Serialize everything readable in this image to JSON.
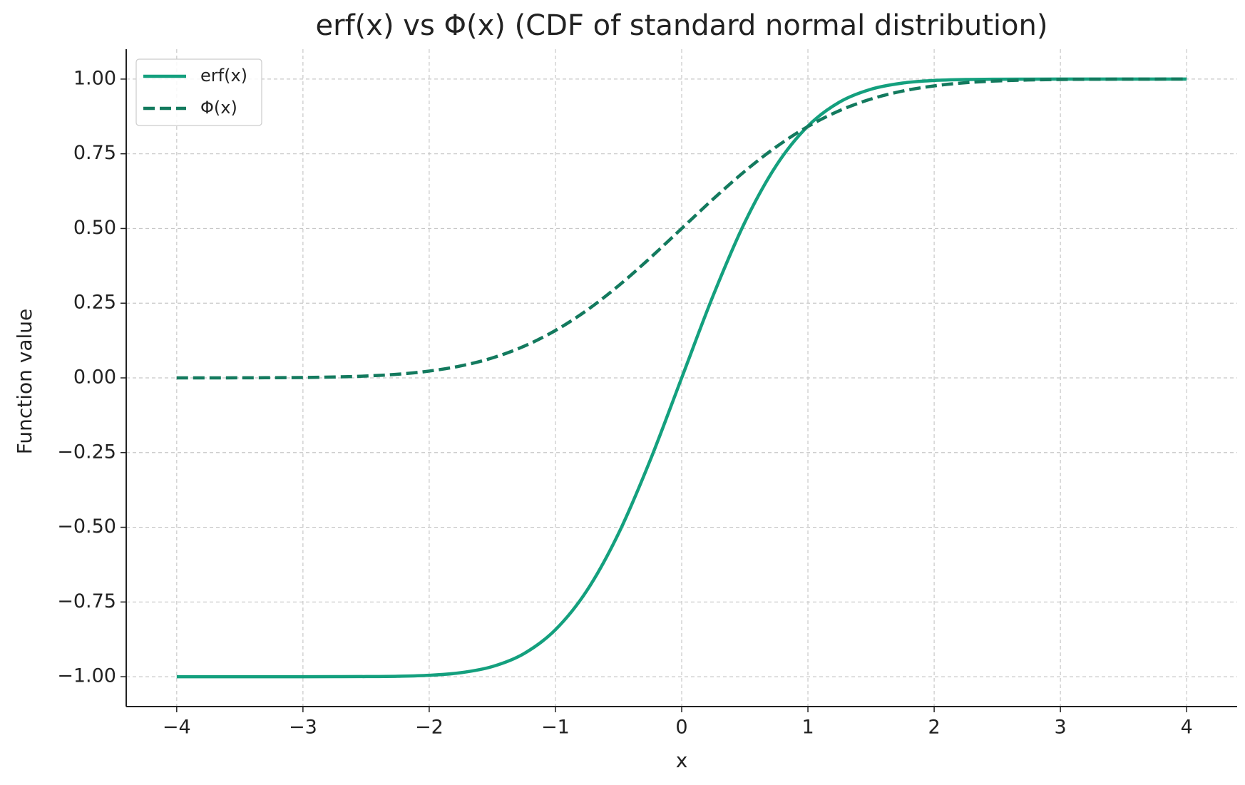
{
  "chart_data": {
    "type": "line",
    "title": "erf(x) vs Φ(x) (CDF of standard normal distribution)",
    "x_label": "x",
    "y_label": "Function value",
    "x": [
      -4,
      -3.75,
      -3.5,
      -3.25,
      -3,
      -2.75,
      -2.5,
      -2.25,
      -2,
      -1.75,
      -1.5,
      -1.25,
      -1,
      -0.75,
      -0.5,
      -0.25,
      0,
      0.25,
      0.5,
      0.75,
      1,
      1.25,
      1.5,
      1.75,
      2,
      2.25,
      2.5,
      2.75,
      3,
      3.25,
      3.5,
      3.75,
      4
    ],
    "series": [
      {
        "name": "erf(x)",
        "color": "#14a07e",
        "linestyle": "solid",
        "values": [
          -1,
          -1,
          -1,
          -1,
          -1,
          -0.9999,
          -0.9996,
          -0.9985,
          -0.9953,
          -0.9867,
          -0.9661,
          -0.9229,
          -0.8427,
          -0.7112,
          -0.5205,
          -0.2763,
          0,
          0.2763,
          0.5205,
          0.7112,
          0.8427,
          0.9229,
          0.9661,
          0.9867,
          0.9953,
          0.9985,
          0.9996,
          0.9999,
          1,
          1,
          1,
          1,
          1
        ]
      },
      {
        "name": "Φ(x)",
        "color": "#137a5e",
        "linestyle": "dashed",
        "values": [
          0,
          0.0001,
          0.0002,
          0.0006,
          0.0013,
          0.003,
          0.0062,
          0.0122,
          0.0228,
          0.0401,
          0.0668,
          0.1056,
          0.1587,
          0.2266,
          0.3085,
          0.4013,
          0.5,
          0.5987,
          0.6915,
          0.7734,
          0.8413,
          0.8944,
          0.9332,
          0.9599,
          0.9772,
          0.9878,
          0.9938,
          0.997,
          0.9987,
          0.9994,
          0.9998,
          0.9999,
          1
        ]
      }
    ],
    "xlim": [
      -4.4,
      4.4
    ],
    "ylim": [
      -1.1,
      1.1
    ],
    "xticks": [
      {
        "value": -4,
        "label": "−4"
      },
      {
        "value": -3,
        "label": "−3"
      },
      {
        "value": -2,
        "label": "−2"
      },
      {
        "value": -1,
        "label": "−1"
      },
      0,
      1,
      2,
      3,
      4
    ],
    "yticks": [
      {
        "value": -1,
        "label": "−1.00"
      },
      {
        "value": -0.75,
        "label": "−0.75"
      },
      {
        "value": -0.5,
        "label": "−0.50"
      },
      {
        "value": -0.25,
        "label": "−0.25"
      },
      {
        "value": 0,
        "label": "0.00"
      },
      {
        "value": 0.25,
        "label": "0.25"
      },
      {
        "value": 0.5,
        "label": "0.50"
      },
      {
        "value": 0.75,
        "label": "0.75"
      },
      {
        "value": 1,
        "label": "1.00"
      }
    ],
    "grid": true,
    "legend": "upper left"
  }
}
